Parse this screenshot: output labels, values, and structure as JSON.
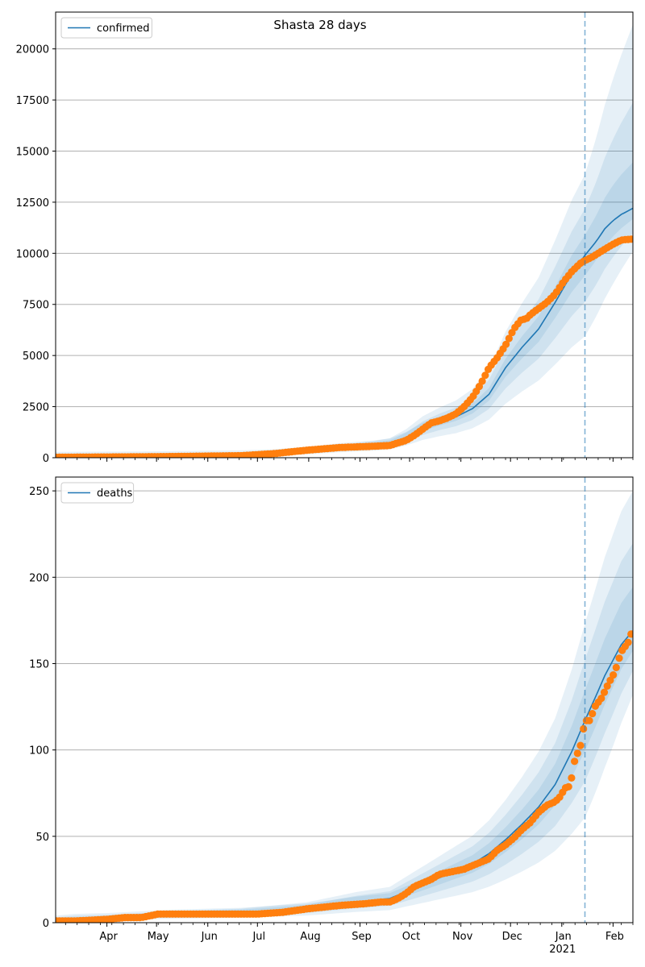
{
  "title": "Shasta 28 days",
  "colors": {
    "model_line": "#1f77b4",
    "observed": "#ff7f0e",
    "band": "#1f77b4",
    "grid": "#b0b0b0",
    "cutoff": "#1f77b4"
  },
  "x_axis": {
    "month_labels": [
      "Apr",
      "May",
      "Jun",
      "Jul",
      "Aug",
      "Sep",
      "Oct",
      "Nov",
      "Dec",
      "Jan",
      "Feb"
    ],
    "month_days": [
      19,
      49,
      80,
      110,
      141,
      172,
      202,
      233,
      263,
      294,
      325
    ],
    "year_label": "2021",
    "xlim_days": [
      -12,
      337
    ],
    "day_zero": "2020-03-13",
    "cutoff_day": 308
  },
  "chart_data": [
    {
      "type": "line",
      "legend": "confirmed",
      "legend_placement": "top-left",
      "grid": "y",
      "ylim": [
        0,
        21800
      ],
      "yticks": [
        0,
        2500,
        5000,
        7500,
        10000,
        12500,
        15000,
        17500,
        20000
      ],
      "ytick_labels": [
        "0",
        "2500",
        "5000",
        "7500",
        "10000",
        "12500",
        "15000",
        "17500",
        "20000"
      ],
      "model": {
        "x": [
          -12,
          0,
          30,
          60,
          100,
          120,
          140,
          160,
          180,
          190,
          200,
          210,
          220,
          230,
          240,
          250,
          260,
          270,
          280,
          290,
          300,
          308,
          315,
          320,
          325,
          330,
          337
        ],
        "y": [
          20,
          30,
          40,
          60,
          100,
          150,
          280,
          450,
          580,
          680,
          1000,
          1450,
          1750,
          2000,
          2400,
          3100,
          4400,
          5400,
          6300,
          7600,
          9000,
          9900,
          10600,
          11200,
          11600,
          11900,
          12200
        ]
      },
      "band_scale": [
        0.1,
        0.23,
        0.4
      ],
      "band_upper_end": 21200,
      "band_lower_end": 10100,
      "observed": {
        "x": [
          -12,
          0,
          30,
          60,
          100,
          120,
          140,
          160,
          180,
          190,
          200,
          205,
          210,
          215,
          220,
          225,
          230,
          235,
          240,
          245,
          250,
          255,
          260,
          265,
          270,
          272,
          275,
          280,
          285,
          290,
          295,
          300,
          305,
          308,
          312,
          318,
          324,
          330,
          337
        ],
        "y": [
          20,
          30,
          40,
          60,
          100,
          200,
          370,
          500,
          560,
          600,
          850,
          1100,
          1400,
          1700,
          1800,
          1950,
          2150,
          2500,
          2950,
          3600,
          4400,
          4900,
          5500,
          6300,
          6800,
          6750,
          7000,
          7300,
          7600,
          8000,
          8600,
          9100,
          9500,
          9650,
          9800,
          10100,
          10400,
          10650,
          10700
        ]
      }
    },
    {
      "type": "line",
      "legend": "deaths",
      "legend_placement": "top-left",
      "grid": "y",
      "ylim": [
        0,
        258
      ],
      "yticks": [
        0,
        50,
        100,
        150,
        200,
        250
      ],
      "ytick_labels": [
        "0",
        "50",
        "100",
        "150",
        "200",
        "250"
      ],
      "model": {
        "x": [
          -12,
          0,
          20,
          40,
          60,
          100,
          140,
          170,
          190,
          200,
          210,
          220,
          230,
          240,
          250,
          260,
          270,
          280,
          290,
          300,
          308,
          315,
          320,
          325,
          330,
          337
        ],
        "y": [
          1,
          2,
          2.5,
          3.5,
          4.5,
          5.5,
          8,
          12,
          14,
          18,
          22,
          26,
          30,
          34,
          40,
          48,
          57,
          67,
          80,
          99,
          117,
          132,
          143,
          152,
          161,
          169
        ]
      },
      "band_scale": [
        0.15,
        0.3,
        0.48
      ],
      "band_upper_end": 250,
      "band_lower_end": 132,
      "observed": {
        "x": [
          -12,
          0,
          20,
          30,
          40,
          50,
          80,
          110,
          125,
          140,
          150,
          160,
          175,
          185,
          190,
          195,
          200,
          205,
          210,
          215,
          220,
          225,
          230,
          235,
          240,
          245,
          250,
          255,
          260,
          265,
          270,
          275,
          280,
          285,
          290,
          293,
          296,
          299,
          302,
          305,
          308,
          311,
          314,
          318,
          322,
          326,
          330,
          334,
          337
        ],
        "y": [
          1,
          1,
          2,
          3,
          3,
          5,
          5,
          5,
          6,
          8,
          9,
          10,
          11,
          12,
          12,
          14,
          17,
          21,
          23,
          25,
          28,
          29,
          30,
          31,
          33,
          35,
          37,
          42,
          45,
          49,
          54,
          58,
          64,
          68,
          70,
          73,
          78,
          79,
          95,
          101,
          117,
          117,
          125,
          130,
          138,
          145,
          157,
          162,
          170
        ]
      }
    }
  ]
}
